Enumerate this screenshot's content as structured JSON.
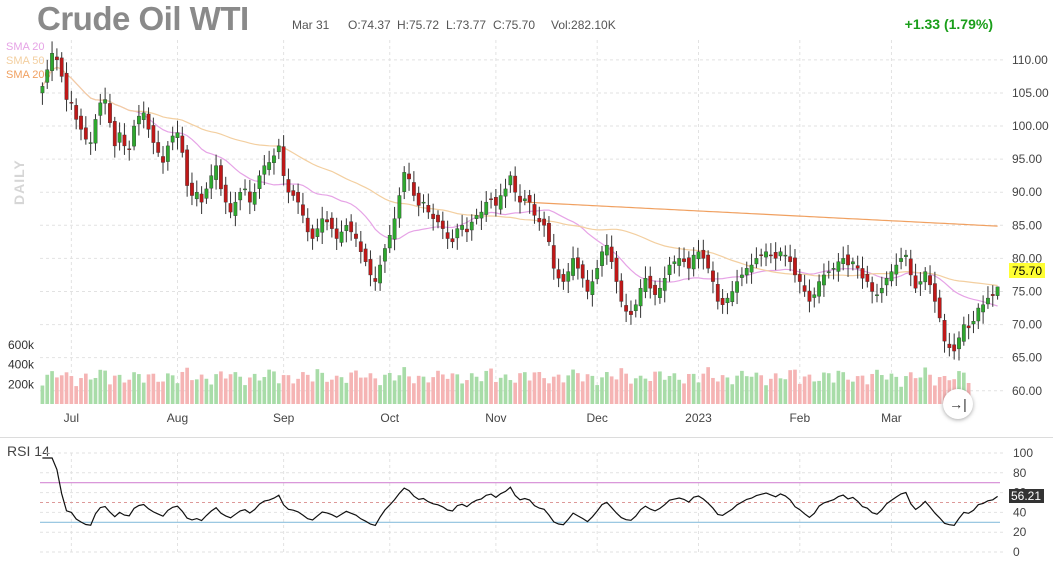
{
  "header": {
    "title": "Crude Oil WTI",
    "date": "Mar 31",
    "open": "O:74.37",
    "high": "H:75.72",
    "low": "L:73.77",
    "close": "C:75.70",
    "volume": "Vol:282.10K",
    "change": "+1.33 (1.79%)"
  },
  "legend": {
    "sma20": "SMA 20",
    "sma50": "SMA 50",
    "sma200": "SMA 200",
    "colors": {
      "sma20": "#e6a3e6",
      "sma50": "#f3cfa0",
      "sma200": "#f0a060"
    }
  },
  "side_label": "DAILY",
  "price_badge": "75.70",
  "rsi_badge": "56.21",
  "rsi_title": "RSI 14",
  "colors": {
    "up": "#2ea82e",
    "down": "#c01818",
    "vol_up": "#a8dca8",
    "vol_down": "#f5b4b4",
    "rsi_line": "#111111",
    "rsi_upper": "#d58ad5",
    "rsi_lower": "#8ec1de"
  },
  "go_end_icon": "→|",
  "chart_data": [
    {
      "type": "candlestick",
      "title": "Crude Oil WTI",
      "x_tick_labels": [
        "Jul",
        "Aug",
        "Sep",
        "Oct",
        "Nov",
        "Dec",
        "2023",
        "Feb",
        "Mar"
      ],
      "x_tick_index": [
        6,
        28,
        50,
        72,
        94,
        115,
        136,
        157,
        176
      ],
      "y_ticks": [
        60,
        65,
        70,
        75,
        80,
        85,
        90,
        95,
        100,
        105,
        110
      ],
      "y_tick_labels": [
        "60.00",
        "65.00",
        "70.00",
        "75.00",
        "80.00",
        "85.00",
        "90.00",
        "95.00",
        "100.00",
        "105.00",
        "110.00"
      ],
      "ylim": [
        58,
        113
      ],
      "close": [
        106.0,
        108.5,
        111.0,
        110.0,
        107.5,
        104.0,
        103.5,
        101.0,
        99.5,
        98.0,
        97.5,
        101.0,
        103.5,
        104.0,
        100.5,
        97.0,
        99.0,
        97.0,
        96.5,
        100.0,
        101.5,
        102.0,
        99.5,
        97.5,
        96.0,
        94.5,
        97.0,
        98.5,
        99.0,
        96.0,
        91.0,
        89.5,
        90.0,
        88.5,
        90.5,
        92.5,
        94.0,
        90.5,
        88.5,
        87.0,
        88.5,
        90.0,
        90.5,
        88.5,
        90.0,
        92.5,
        94.0,
        94.5,
        95.5,
        97.0,
        92.5,
        90.0,
        89.5,
        88.5,
        86.5,
        84.0,
        83.0,
        84.5,
        86.0,
        85.5,
        84.5,
        83.0,
        84.0,
        85.0,
        84.0,
        83.0,
        81.0,
        79.5,
        77.5,
        76.5,
        79.0,
        81.5,
        83.5,
        86.0,
        89.5,
        93.0,
        92.0,
        89.5,
        88.0,
        88.5,
        87.0,
        86.0,
        85.5,
        84.5,
        83.0,
        82.5,
        84.5,
        85.0,
        84.0,
        85.5,
        86.5,
        87.0,
        88.5,
        89.0,
        88.0,
        89.5,
        90.5,
        92.5,
        90.0,
        88.5,
        89.0,
        88.5,
        86.5,
        85.5,
        85.0,
        82.5,
        78.5,
        77.0,
        76.5,
        78.0,
        80.0,
        78.5,
        77.0,
        75.0,
        76.5,
        78.5,
        81.0,
        82.0,
        79.5,
        76.5,
        73.5,
        72.0,
        71.5,
        73.0,
        75.5,
        77.0,
        75.5,
        74.5,
        75.5,
        77.0,
        79.0,
        79.5,
        80.0,
        79.5,
        78.5,
        80.5,
        81.0,
        80.0,
        78.5,
        76.5,
        73.5,
        73.0,
        74.0,
        75.0,
        76.5,
        77.5,
        78.5,
        79.0,
        80.0,
        80.5,
        81.0,
        80.5,
        80.0,
        81.0,
        80.5,
        79.5,
        77.5,
        76.5,
        75.0,
        73.5,
        74.5,
        76.5,
        77.5,
        78.0,
        78.5,
        79.5,
        80.0,
        79.0,
        79.5,
        78.5,
        77.0,
        76.5,
        75.0,
        74.5,
        75.5,
        77.0,
        78.0,
        79.0,
        80.0,
        80.5,
        77.5,
        75.5,
        76.5,
        78.0,
        76.0,
        73.5,
        71.0,
        67.5,
        66.5,
        66.0,
        68.0,
        70.0,
        69.5,
        70.5,
        72.5,
        73.0,
        74.0,
        74.37,
        75.7
      ],
      "volume_ticks": [
        "200k",
        "400k",
        "600k"
      ],
      "volume_ylim": [
        0,
        650000
      ],
      "volume_approx_k": [
        250,
        260,
        270,
        280,
        300,
        260,
        250,
        240,
        230,
        250,
        260,
        270,
        280,
        300,
        260,
        250,
        240,
        230,
        250,
        260,
        270,
        280,
        260,
        250,
        240,
        230,
        250,
        260,
        270,
        280,
        300,
        260,
        250,
        240,
        230,
        250,
        260,
        270,
        280,
        300,
        260,
        250,
        240,
        230,
        250,
        260,
        270,
        280,
        300,
        260,
        250,
        240,
        230,
        250,
        260,
        270,
        280,
        300,
        260,
        250,
        240,
        230,
        250,
        260,
        270,
        280,
        300,
        260,
        250,
        240,
        230,
        250,
        260,
        270,
        280,
        300,
        260,
        250,
        240,
        230,
        250,
        260,
        270,
        280,
        300,
        260,
        250,
        240,
        230,
        250,
        260,
        270,
        280,
        300,
        260,
        250,
        240,
        230,
        250,
        260,
        270,
        280,
        300,
        260,
        250,
        240,
        230,
        250,
        260,
        270,
        280,
        300,
        260,
        250,
        240,
        230,
        250,
        260,
        270,
        280,
        300,
        260,
        250,
        240,
        230,
        250,
        260,
        270,
        280,
        300,
        260,
        250,
        240,
        230,
        250,
        260,
        270,
        280,
        300,
        260,
        250,
        240,
        230,
        250,
        260,
        270,
        280,
        300,
        260,
        250,
        240,
        230,
        250,
        260,
        270,
        280,
        300,
        260,
        250,
        240,
        230,
        250,
        260,
        270,
        280,
        300,
        260,
        250,
        240,
        230,
        250,
        260,
        270,
        280,
        300,
        260,
        250,
        240,
        230,
        250,
        260,
        270,
        280,
        300,
        260,
        250,
        240,
        230,
        250,
        260,
        270,
        280,
        282.1
      ]
    },
    {
      "type": "line",
      "title": "RSI 14",
      "y_ticks": [
        0,
        20,
        40,
        60,
        80,
        100
      ],
      "y_tick_labels": [
        "0",
        "20",
        "40",
        "60",
        "80",
        "100"
      ],
      "ylim": [
        0,
        100
      ],
      "upper_band": 70,
      "lower_band": 30,
      "last_value": 56.21
    }
  ]
}
